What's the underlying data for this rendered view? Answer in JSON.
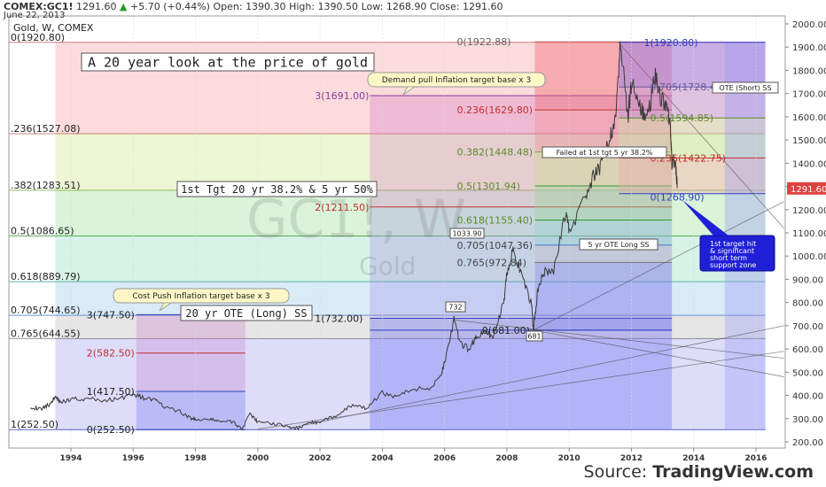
{
  "header": {
    "symbol": "COMEX:GC1!",
    "last": "1291.60",
    "change": "+5.70 (+0.44%)",
    "open_label": "Open:",
    "open": "1390.30",
    "high_label": "High:",
    "high": "1390.50",
    "low_label": "Low:",
    "low": "1268.90",
    "close_label": "Close:",
    "close": "1291.60",
    "date": "June 22, 2013",
    "instrument": "Gold, W, COMEX",
    "up_arrow": "▲"
  },
  "source": {
    "prefix": "Source:",
    "name": "TradingView.com"
  },
  "watermark": {
    "symbol": "GC1!, W",
    "name": "Gold"
  },
  "chart_data": {
    "type": "line",
    "title": "A 20 year look at the price of gold",
    "ylim": [
      200,
      2000
    ],
    "xlim": [
      1992.7,
      2016.9
    ],
    "y_ticks": [
      200,
      300,
      400,
      500,
      600,
      700,
      800,
      900,
      1000,
      1100,
      1200,
      1300,
      1400,
      1500,
      1600,
      1700,
      1800,
      1900,
      2000
    ],
    "y_tick_labels": [
      "200.00",
      "300.00",
      "400.00",
      "500.00",
      "600.00",
      "700.00",
      "800.00",
      "900.00",
      "1000.00",
      "1100.00",
      "1200.00",
      "1300.00",
      "1400.00",
      "1500.00",
      "1600.00",
      "1700.00",
      "1800.00",
      "1900.00",
      "2000.00"
    ],
    "x_ticks": [
      1994,
      1996,
      1998,
      2000,
      2002,
      2004,
      2006,
      2008,
      2010,
      2012,
      2014,
      2016
    ],
    "x_tick_labels": [
      "1994",
      "1996",
      "1998",
      "2000",
      "2002",
      "2004",
      "2006",
      "2008",
      "2010",
      "2012",
      "2014",
      "2016"
    ],
    "last_price": {
      "value": 1291.6,
      "label": "1291.60"
    },
    "price_series": [
      [
        1992.7,
        352
      ],
      [
        1993.0,
        340
      ],
      [
        1993.3,
        360
      ],
      [
        1993.5,
        395
      ],
      [
        1993.7,
        370
      ],
      [
        1994.0,
        385
      ],
      [
        1994.5,
        385
      ],
      [
        1995.0,
        378
      ],
      [
        1995.5,
        385
      ],
      [
        1996.0,
        405
      ],
      [
        1996.3,
        390
      ],
      [
        1996.7,
        380
      ],
      [
        1997.0,
        350
      ],
      [
        1997.5,
        330
      ],
      [
        1997.8,
        305
      ],
      [
        1998.0,
        295
      ],
      [
        1998.5,
        295
      ],
      [
        1998.8,
        290
      ],
      [
        1999.2,
        285
      ],
      [
        1999.5,
        255
      ],
      [
        1999.75,
        320
      ],
      [
        2000.0,
        285
      ],
      [
        2000.5,
        280
      ],
      [
        2001.0,
        265
      ],
      [
        2001.3,
        258
      ],
      [
        2001.7,
        285
      ],
      [
        2002.0,
        282
      ],
      [
        2002.5,
        315
      ],
      [
        2003.0,
        355
      ],
      [
        2003.5,
        345
      ],
      [
        2004.0,
        410
      ],
      [
        2004.5,
        395
      ],
      [
        2005.0,
        430
      ],
      [
        2005.5,
        425
      ],
      [
        2005.9,
        495
      ],
      [
        2006.0,
        540
      ],
      [
        2006.3,
        725
      ],
      [
        2006.5,
        620
      ],
      [
        2006.8,
        600
      ],
      [
        2007.0,
        650
      ],
      [
        2007.3,
        670
      ],
      [
        2007.6,
        660
      ],
      [
        2007.9,
        800
      ],
      [
        2008.0,
        930
      ],
      [
        2008.2,
        1030
      ],
      [
        2008.5,
        900
      ],
      [
        2008.8,
        790
      ],
      [
        2008.85,
        681
      ],
      [
        2009.0,
        860
      ],
      [
        2009.2,
        930
      ],
      [
        2009.5,
        930
      ],
      [
        2009.9,
        1200
      ],
      [
        2010.0,
        1100
      ],
      [
        2010.5,
        1250
      ],
      [
        2010.8,
        1350
      ],
      [
        2011.0,
        1380
      ],
      [
        2011.3,
        1500
      ],
      [
        2011.5,
        1620
      ],
      [
        2011.65,
        1910
      ],
      [
        2011.9,
        1600
      ],
      [
        2012.0,
        1750
      ],
      [
        2012.3,
        1640
      ],
      [
        2012.5,
        1580
      ],
      [
        2012.75,
        1780
      ],
      [
        2012.95,
        1680
      ],
      [
        2013.1,
        1660
      ],
      [
        2013.25,
        1560
      ],
      [
        2013.3,
        1390
      ],
      [
        2013.4,
        1420
      ],
      [
        2013.47,
        1291.6
      ]
    ],
    "bands": [
      {
        "x0": 1993.5,
        "x1": 2003.6,
        "y0": 252.5,
        "y1": 1920.8,
        "levels": [
          {
            "y": 1920.8,
            "label": "0(1920.80)",
            "edge": "0(1920.80)"
          },
          {
            "y": 1527.08,
            "label": "",
            "edge": ".236(1527.08)"
          },
          {
            "y": 1283.51,
            "label": "",
            "edge": ".382(1283.51)"
          },
          {
            "y": 1086.65,
            "label": "",
            "edge": "0.5(1086.65)"
          },
          {
            "y": 889.79,
            "label": "",
            "edge": "0.618(889.79)"
          },
          {
            "y": 744.65,
            "label": "",
            "edge": "0.705(744.65)"
          },
          {
            "y": 644.55,
            "label": "",
            "edge": "0.765(644.55)"
          },
          {
            "y": 252.5,
            "label": "1(252.50)",
            "edge": "1(252.50)"
          }
        ]
      },
      {
        "x0": 1996.1,
        "x1": 1999.6,
        "y0": 252.5,
        "y1": 747.5,
        "levels": [
          {
            "y": 747.5,
            "label": "3(747.50)"
          },
          {
            "y": 582.5,
            "label": "2(582.50)"
          },
          {
            "y": 417.5,
            "label": "1(417.50)"
          },
          {
            "y": 252.5,
            "label": "0(252.50)"
          }
        ]
      },
      {
        "x0": 2003.6,
        "x1": 2013.3,
        "y0": 681,
        "y1": 1691,
        "levels": [
          {
            "y": 1691,
            "label": "3(1691.00)"
          },
          {
            "y": 1211.5,
            "label": "2(1211.50)"
          },
          {
            "y": 732,
            "label": "1(732.00)"
          },
          {
            "y": 681,
            "label": "0(681.00)"
          }
        ]
      },
      {
        "x0": 2008.9,
        "x1": 2013.3,
        "y0": 681,
        "y1": 1922.88,
        "levels": [
          {
            "y": 1922.88,
            "label": "0(1922.88)"
          },
          {
            "y": 1629.8,
            "label": "0.236(1629.80)"
          },
          {
            "y": 1448.48,
            "label": "0.382(1448.48)"
          },
          {
            "y": 1301.94,
            "label": "0.5(1301.94)"
          },
          {
            "y": 1155.4,
            "label": "0.618(1155.40)"
          },
          {
            "y": 1047.36,
            "label": "0.705(1047.36)"
          },
          {
            "y": 972.84,
            "label": "0.765(972.84)"
          },
          {
            "y": 681,
            "label": "1(681.00)"
          }
        ]
      },
      {
        "x0": 2011.6,
        "x1": 2015.0,
        "y0": 1268.9,
        "y1": 1920.8,
        "levels": [
          {
            "y": 1920.8,
            "label": "1(1920.80)"
          },
          {
            "y": 1728.49,
            "label": "0.705(1728.49)"
          },
          {
            "y": 1594.85,
            "label": "0.5(1594.85)"
          },
          {
            "y": 1422.75,
            "label": "0.236(1422.75)"
          },
          {
            "y": 1268.9,
            "label": "0(1268.90)"
          }
        ]
      }
    ],
    "annotations": {
      "title_box": "A 20 year look at the price of gold",
      "demand_pull": "Demand pull Inflation target base x 3",
      "cost_push": "Cost Push Inflation target base x 3",
      "first_target": "1st Tgt 20 yr 38.2% & 5 yr 50%",
      "ote_long_20": "20 yr OTE (Long) SS",
      "failed": "Failed at 1st tgt 5 yr 38.2%",
      "ote_long_5": "5 yr OTE Long SS",
      "ote_short": "OTE (Short) SS",
      "label_732": "732",
      "label_681": "681",
      "label_1033": "1033.90",
      "callout": [
        "1st target hit",
        "& significant",
        "short term",
        "support zone"
      ]
    }
  }
}
